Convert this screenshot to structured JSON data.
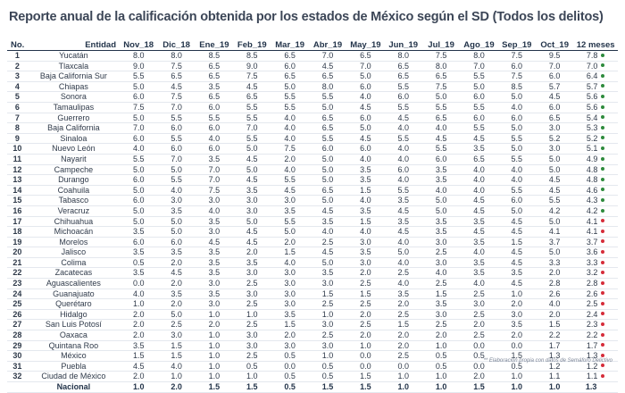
{
  "title": "Reporte anual de la calificación obtenida por los estados de México según el SD (Todos los delitos)",
  "colors": {
    "green": "#2e8b3d",
    "red": "#d62d3a",
    "header_text": "#23344a"
  },
  "columns": [
    "No.",
    "Entidad",
    "Nov_18",
    "Dic_18",
    "Ene_19",
    "Feb_19",
    "Mar_19",
    "Abr_19",
    "May_19",
    "Jun_19",
    "Jul_19",
    "Ago_19",
    "Sep_19",
    "Oct_19",
    "12 meses"
  ],
  "rows": [
    {
      "no": "1",
      "entidad": "Yucatán",
      "values": [
        "8.0",
        "8.0",
        "8.5",
        "8.5",
        "6.5",
        "7.0",
        "6.5",
        "8.0",
        "7.5",
        "8.0",
        "7.5",
        "9.5"
      ],
      "avg": "7.8",
      "status": "green"
    },
    {
      "no": "2",
      "entidad": "Tlaxcala",
      "values": [
        "9.0",
        "7.5",
        "6.5",
        "9.0",
        "6.0",
        "4.5",
        "7.0",
        "6.5",
        "8.0",
        "7.0",
        "6.0",
        "7.0"
      ],
      "avg": "7.0",
      "status": "green"
    },
    {
      "no": "3",
      "entidad": "Baja California Sur",
      "values": [
        "5.5",
        "6.5",
        "6.5",
        "7.5",
        "6.5",
        "6.5",
        "5.0",
        "6.5",
        "6.5",
        "5.5",
        "7.5",
        "6.0"
      ],
      "avg": "6.4",
      "status": "green"
    },
    {
      "no": "4",
      "entidad": "Chiapas",
      "values": [
        "5.0",
        "4.5",
        "3.5",
        "4.5",
        "5.0",
        "8.0",
        "6.0",
        "5.5",
        "7.5",
        "5.0",
        "8.5",
        "5.7"
      ],
      "avg": "5.7",
      "status": "green"
    },
    {
      "no": "5",
      "entidad": "Sonora",
      "values": [
        "6.0",
        "7.5",
        "6.5",
        "6.5",
        "5.5",
        "5.5",
        "4.0",
        "6.0",
        "5.0",
        "6.0",
        "5.0",
        "4.5"
      ],
      "avg": "5.6",
      "status": "green"
    },
    {
      "no": "6",
      "entidad": "Tamaulipas",
      "values": [
        "7.5",
        "7.0",
        "6.0",
        "5.5",
        "5.5",
        "5.0",
        "4.5",
        "5.5",
        "5.5",
        "5.5",
        "4.0",
        "6.0"
      ],
      "avg": "5.6",
      "status": "green"
    },
    {
      "no": "7",
      "entidad": "Guerrero",
      "values": [
        "5.0",
        "5.5",
        "5.5",
        "5.5",
        "4.0",
        "6.5",
        "6.0",
        "4.5",
        "6.5",
        "6.0",
        "6.0",
        "6.5"
      ],
      "avg": "5.4",
      "status": "green"
    },
    {
      "no": "8",
      "entidad": "Baja California",
      "values": [
        "7.0",
        "6.0",
        "6.0",
        "7.0",
        "4.0",
        "6.5",
        "5.0",
        "4.0",
        "4.0",
        "5.5",
        "5.0",
        "3.0"
      ],
      "avg": "5.3",
      "status": "green"
    },
    {
      "no": "9",
      "entidad": "Sinaloa",
      "values": [
        "6.0",
        "5.5",
        "4.0",
        "5.5",
        "4.0",
        "5.5",
        "4.5",
        "5.5",
        "4.5",
        "4.5",
        "5.5",
        "5.2"
      ],
      "avg": "5.2",
      "status": "green"
    },
    {
      "no": "10",
      "entidad": "Nuevo León",
      "values": [
        "4.0",
        "6.0",
        "6.0",
        "5.0",
        "7.5",
        "6.0",
        "6.0",
        "4.0",
        "5.5",
        "3.5",
        "5.0",
        "3.0"
      ],
      "avg": "5.1",
      "status": "green"
    },
    {
      "no": "11",
      "entidad": "Nayarit",
      "values": [
        "5.5",
        "7.0",
        "3.5",
        "4.5",
        "2.0",
        "5.0",
        "4.0",
        "4.0",
        "6.0",
        "6.5",
        "5.5",
        "5.0"
      ],
      "avg": "4.9",
      "status": "green"
    },
    {
      "no": "12",
      "entidad": "Campeche",
      "values": [
        "5.0",
        "5.0",
        "7.0",
        "5.0",
        "4.0",
        "5.0",
        "3.5",
        "6.0",
        "3.5",
        "4.0",
        "4.0",
        "5.0"
      ],
      "avg": "4.8",
      "status": "green"
    },
    {
      "no": "13",
      "entidad": "Durango",
      "values": [
        "6.0",
        "5.5",
        "7.0",
        "4.5",
        "5.5",
        "5.0",
        "3.5",
        "4.0",
        "3.5",
        "4.0",
        "4.0",
        "4.5"
      ],
      "avg": "4.8",
      "status": "green"
    },
    {
      "no": "14",
      "entidad": "Coahuila",
      "values": [
        "5.0",
        "4.0",
        "7.5",
        "3.5",
        "4.5",
        "6.5",
        "1.5",
        "5.5",
        "4.0",
        "4.0",
        "5.5",
        "4.5"
      ],
      "avg": "4.6",
      "status": "green"
    },
    {
      "no": "15",
      "entidad": "Tabasco",
      "values": [
        "6.0",
        "3.0",
        "3.0",
        "3.0",
        "3.0",
        "5.0",
        "4.0",
        "3.5",
        "5.0",
        "4.5",
        "6.0",
        "5.5"
      ],
      "avg": "4.3",
      "status": "green"
    },
    {
      "no": "16",
      "entidad": "Veracruz",
      "values": [
        "5.0",
        "3.5",
        "4.0",
        "3.0",
        "3.5",
        "4.5",
        "3.5",
        "4.5",
        "5.0",
        "4.5",
        "5.0",
        "4.2"
      ],
      "avg": "4.2",
      "status": "green"
    },
    {
      "no": "17",
      "entidad": "Chihuahua",
      "values": [
        "5.0",
        "5.0",
        "3.5",
        "5.0",
        "5.5",
        "3.5",
        "1.5",
        "3.5",
        "3.5",
        "3.5",
        "4.5",
        "5.0"
      ],
      "avg": "4.1",
      "status": "red"
    },
    {
      "no": "18",
      "entidad": "Michoacán",
      "values": [
        "3.5",
        "5.0",
        "3.0",
        "4.5",
        "5.0",
        "4.0",
        "4.0",
        "4.5",
        "3.5",
        "4.5",
        "4.5",
        "4.1"
      ],
      "avg": "4.1",
      "status": "red"
    },
    {
      "no": "19",
      "entidad": "Morelos",
      "values": [
        "6.0",
        "6.0",
        "4.5",
        "4.5",
        "2.0",
        "2.5",
        "3.0",
        "4.0",
        "3.0",
        "3.5",
        "1.5",
        "3.7"
      ],
      "avg": "3.7",
      "status": "red"
    },
    {
      "no": "20",
      "entidad": "Jalisco",
      "values": [
        "3.5",
        "3.5",
        "3.5",
        "2.0",
        "1.5",
        "4.5",
        "3.5",
        "5.0",
        "2.5",
        "4.0",
        "4.5",
        "5.0"
      ],
      "avg": "3.6",
      "status": "red"
    },
    {
      "no": "21",
      "entidad": "Colima",
      "values": [
        "0.5",
        "2.0",
        "3.5",
        "3.5",
        "4.0",
        "5.0",
        "3.0",
        "4.0",
        "3.0",
        "3.5",
        "4.5",
        "3.3"
      ],
      "avg": "3.3",
      "status": "red"
    },
    {
      "no": "22",
      "entidad": "Zacatecas",
      "values": [
        "3.5",
        "4.5",
        "3.5",
        "3.0",
        "3.0",
        "3.5",
        "2.0",
        "2.5",
        "4.0",
        "3.5",
        "3.5",
        "2.0"
      ],
      "avg": "3.2",
      "status": "red"
    },
    {
      "no": "23",
      "entidad": "Aguascalientes",
      "values": [
        "0.0",
        "2.0",
        "3.0",
        "2.5",
        "3.0",
        "3.0",
        "2.5",
        "4.0",
        "2.5",
        "4.0",
        "4.5",
        "2.8"
      ],
      "avg": "2.8",
      "status": "red"
    },
    {
      "no": "24",
      "entidad": "Guanajuato",
      "values": [
        "4.0",
        "3.5",
        "3.5",
        "3.0",
        "3.0",
        "1.5",
        "1.5",
        "3.5",
        "1.5",
        "2.5",
        "1.0",
        "2.6"
      ],
      "avg": "2.6",
      "status": "red"
    },
    {
      "no": "25",
      "entidad": "Querétaro",
      "values": [
        "1.0",
        "2.0",
        "3.0",
        "2.5",
        "3.0",
        "2.5",
        "2.5",
        "2.0",
        "3.5",
        "3.0",
        "2.0",
        "4.0"
      ],
      "avg": "2.5",
      "status": "red"
    },
    {
      "no": "26",
      "entidad": "Hidalgo",
      "values": [
        "2.0",
        "5.0",
        "1.0",
        "1.0",
        "3.5",
        "1.0",
        "2.0",
        "2.5",
        "3.0",
        "2.5",
        "3.0",
        "2.0"
      ],
      "avg": "2.4",
      "status": "red"
    },
    {
      "no": "27",
      "entidad": "San Luis Potosí",
      "values": [
        "2.0",
        "2.5",
        "2.0",
        "2.5",
        "1.5",
        "3.0",
        "2.5",
        "1.5",
        "2.5",
        "2.0",
        "3.5",
        "1.5"
      ],
      "avg": "2.3",
      "status": "red"
    },
    {
      "no": "28",
      "entidad": "Oaxaca",
      "values": [
        "2.0",
        "3.0",
        "1.0",
        "3.0",
        "2.0",
        "2.5",
        "2.0",
        "2.0",
        "2.0",
        "2.5",
        "2.0",
        "2.2"
      ],
      "avg": "2.2",
      "status": "red"
    },
    {
      "no": "29",
      "entidad": "Quintana Roo",
      "values": [
        "3.5",
        "1.5",
        "1.0",
        "3.0",
        "3.0",
        "3.0",
        "1.0",
        "2.0",
        "1.0",
        "0.0",
        "0.0",
        "1.7"
      ],
      "avg": "1.7",
      "status": "red"
    },
    {
      "no": "30",
      "entidad": "México",
      "values": [
        "1.5",
        "1.5",
        "1.0",
        "2.5",
        "0.5",
        "1.0",
        "0.0",
        "2.5",
        "0.5",
        "0.5",
        "1.5",
        "1.3"
      ],
      "avg": "1.3",
      "status": "red"
    },
    {
      "no": "31",
      "entidad": "Puebla",
      "values": [
        "4.5",
        "4.0",
        "1.0",
        "0.5",
        "0.0",
        "0.5",
        "0.0",
        "0.0",
        "0.5",
        "0.0",
        "0.5",
        "1.2"
      ],
      "avg": "1.2",
      "status": "red"
    },
    {
      "no": "32",
      "entidad": "Ciudad de México",
      "values": [
        "2.0",
        "1.0",
        "1.0",
        "1.0",
        "0.5",
        "0.5",
        "1.5",
        "1.0",
        "1.0",
        "2.0",
        "1.0",
        "1.1"
      ],
      "avg": "1.1",
      "status": "red"
    }
  ],
  "national": {
    "label": "Nacional",
    "values": [
      "1.0",
      "2.0",
      "1.5",
      "1.5",
      "0.5",
      "1.5",
      "1.5",
      "1.0",
      "1.0",
      "1.5",
      "1.0",
      "1.0"
    ],
    "avg": "1.3"
  },
  "footnote": "** Elaboración propia con datos de Semáforo Delictivo"
}
